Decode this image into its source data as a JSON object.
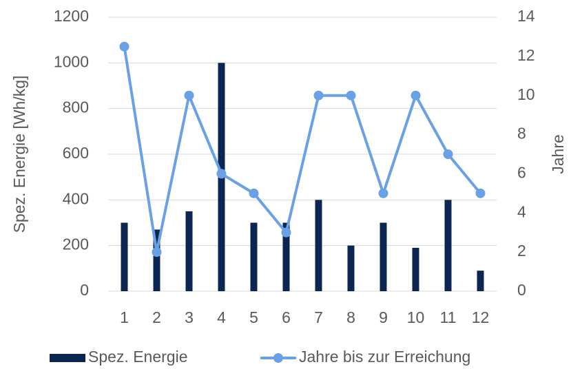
{
  "chart_data": {
    "type": "bar",
    "categories": [
      "1",
      "2",
      "3",
      "4",
      "5",
      "6",
      "7",
      "8",
      "9",
      "10",
      "11",
      "12"
    ],
    "series": [
      {
        "name": "Spez. Energie",
        "type": "bar",
        "color": "#0b2650",
        "values": [
          300,
          270,
          350,
          1000,
          300,
          300,
          400,
          200,
          300,
          190,
          400,
          90
        ]
      },
      {
        "name": "Jahre bis zur Erreichung",
        "type": "line",
        "axis": "y2",
        "color": "#6aa0e6",
        "values": [
          12.5,
          2,
          10,
          6,
          5,
          3,
          10,
          10,
          5,
          10,
          7,
          5
        ]
      }
    ],
    "ylabel": "Spez. Energie [Wh/kg]",
    "y2label": "Jahre",
    "ylim": [
      0,
      1200
    ],
    "yticks": [
      0,
      200,
      400,
      600,
      800,
      1000,
      1200
    ],
    "y2lim": [
      0,
      14
    ],
    "y2ticks": [
      0,
      2,
      4,
      6,
      8,
      10,
      12,
      14
    ],
    "grid": true,
    "legend": "bottom"
  }
}
